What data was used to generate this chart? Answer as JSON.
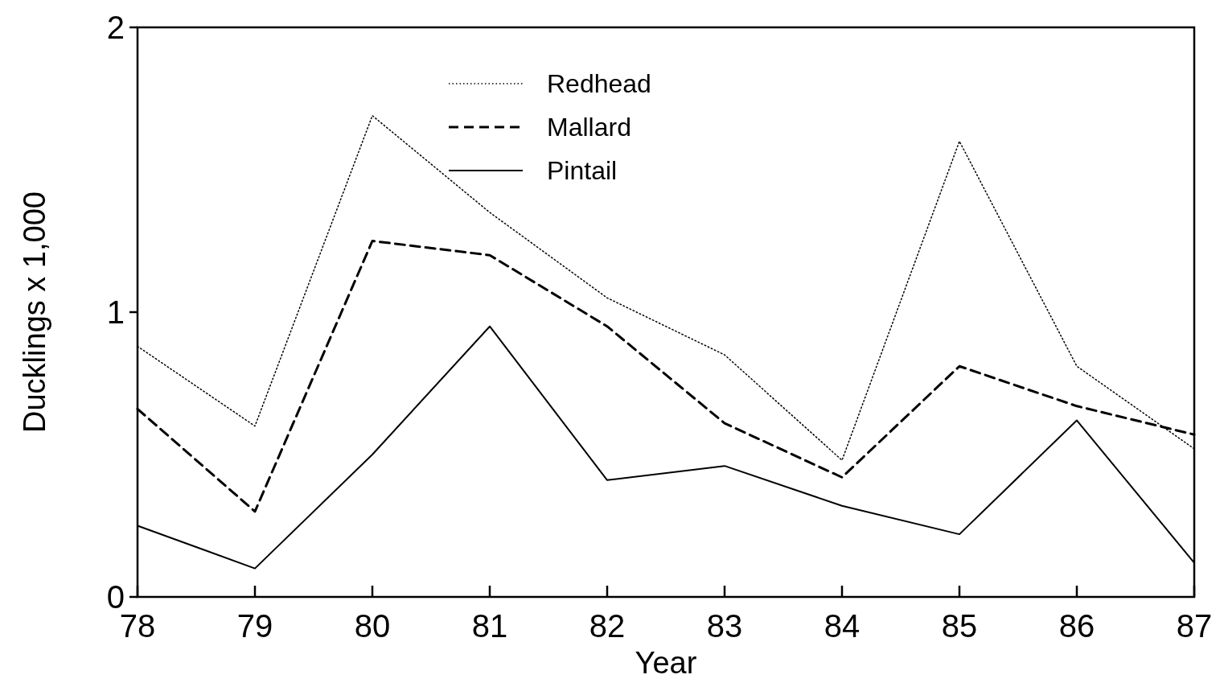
{
  "chart_data": {
    "type": "line",
    "xlabel": "Year",
    "ylabel": "Ducklings x 1,000",
    "x": [
      78,
      79,
      80,
      81,
      82,
      83,
      84,
      85,
      86,
      87
    ],
    "xlim": [
      78,
      87
    ],
    "xticks": [
      78,
      79,
      80,
      81,
      82,
      83,
      84,
      85,
      86,
      87
    ],
    "ylim": [
      0,
      2
    ],
    "yticks": [
      0,
      1,
      2
    ],
    "legend": "top",
    "marker": "none",
    "grid": false,
    "series": [
      {
        "name": "Redhead",
        "color": "#000000",
        "line_style": "dotted",
        "values": [
          0.88,
          0.6,
          1.69,
          1.35,
          1.05,
          0.85,
          0.48,
          1.6,
          0.81,
          0.52
        ]
      },
      {
        "name": "Mallard",
        "color": "#000000",
        "line_style": "dashed",
        "values": [
          0.66,
          0.3,
          1.25,
          1.2,
          0.95,
          0.61,
          0.42,
          0.81,
          0.67,
          0.57
        ]
      },
      {
        "name": "Pintail",
        "color": "#000000",
        "line_style": "solid",
        "values": [
          0.25,
          0.1,
          0.5,
          0.95,
          0.41,
          0.46,
          0.32,
          0.22,
          0.62,
          0.12
        ]
      }
    ]
  }
}
